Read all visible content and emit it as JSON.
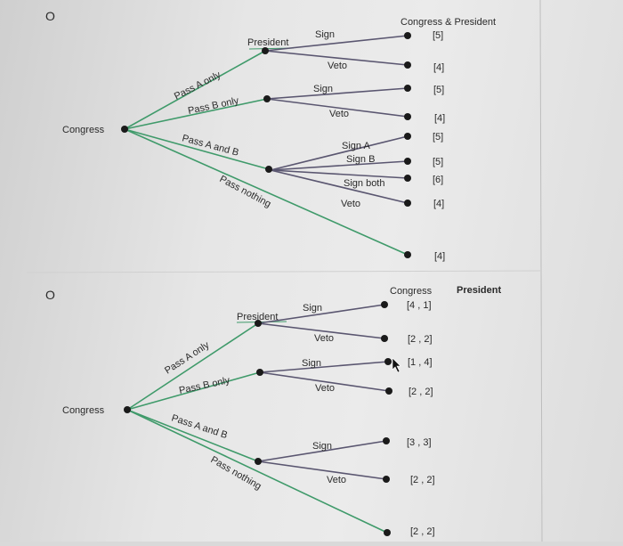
{
  "top_tree": {
    "bullet": "O",
    "header": "Congress & President",
    "root_label": "Congress",
    "president_label": "President",
    "congress_moves": [
      "Pass A only",
      "Pass B only",
      "Pass A and B",
      "Pass nothing"
    ],
    "branch_a": {
      "moves": [
        "Sign",
        "Veto"
      ],
      "payoffs": [
        "[5]",
        "[4]"
      ]
    },
    "branch_b": {
      "moves": [
        "Sign",
        "Veto"
      ],
      "payoffs": [
        "[5]",
        "[4]"
      ]
    },
    "branch_ab": {
      "moves": [
        "Sign A",
        "Sign B",
        "Sign both",
        "Veto"
      ],
      "payoffs": [
        "[5]",
        "[5]",
        "[6]",
        "[4]"
      ]
    },
    "nothing_payoff": "[4]"
  },
  "bottom_tree": {
    "bullet": "O",
    "header_congress": "Congress",
    "header_president": "President",
    "root_label": "Congress",
    "president_label": "President",
    "congress_moves": [
      "Pass A only",
      "Pass B only",
      "Pass A and B",
      "Pass nothing"
    ],
    "branch_a": {
      "moves": [
        "Sign",
        "Veto"
      ],
      "payoffs": [
        "[4 , 1]",
        "[2 , 2]"
      ]
    },
    "branch_b": {
      "moves": [
        "Sign",
        "Veto"
      ],
      "payoffs": [
        "[1 , 4]",
        "[2 , 2]"
      ]
    },
    "branch_ab": {
      "moves": [
        "Sign",
        "Veto"
      ],
      "payoffs": [
        "[3 , 3]",
        "[2 , 2]"
      ]
    },
    "nothing_payoff": "[2 , 2]"
  },
  "colors": {
    "congress_edge": "#3f9a6a",
    "president_edge": "#5a5670",
    "node": "#1a1a1a"
  }
}
